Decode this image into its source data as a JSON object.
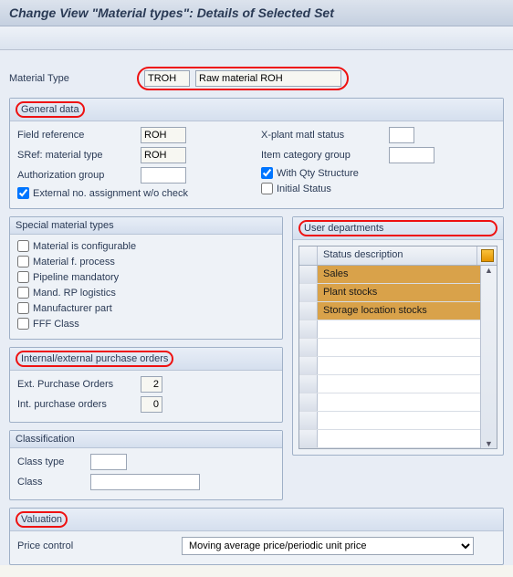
{
  "title": "Change View \"Material types\": Details of Selected Set",
  "material_type": {
    "label": "Material Type",
    "code": "TROH",
    "desc": "Raw material ROH"
  },
  "general_data": {
    "title": "General data",
    "field_reference_label": "Field reference",
    "field_reference": "ROH",
    "sref_label": "SRef: material type",
    "sref": "ROH",
    "auth_group_label": "Authorization group",
    "auth_group": "",
    "ext_no_label": "External no. assignment w/o check",
    "ext_no_checked": true,
    "xplant_label": "X-plant matl status",
    "xplant": "",
    "itemcat_label": "Item category group",
    "itemcat": "",
    "qty_label": "With Qty Structure",
    "qty_checked": true,
    "init_label": "Initial Status",
    "init_checked": false
  },
  "special": {
    "title": "Special material types",
    "items": [
      "Material is configurable",
      "Material f. process",
      "Pipeline mandatory",
      "Mand. RP logistics",
      "Manufacturer part",
      "FFF Class"
    ]
  },
  "user_dep": {
    "title": "User departments",
    "col": "Status description",
    "rows": [
      "Sales",
      "Plant stocks",
      "Storage location stocks"
    ]
  },
  "po": {
    "title": "Internal/external purchase orders",
    "ext_label": "Ext. Purchase Orders",
    "ext": "2",
    "int_label": "Int. purchase orders",
    "int": "0"
  },
  "classification": {
    "title": "Classification",
    "classtype_label": "Class type",
    "classtype": "",
    "class_label": "Class",
    "class": ""
  },
  "valuation": {
    "title": "Valuation",
    "price_control_label": "Price control",
    "price_control": "Moving average price/periodic unit price"
  }
}
